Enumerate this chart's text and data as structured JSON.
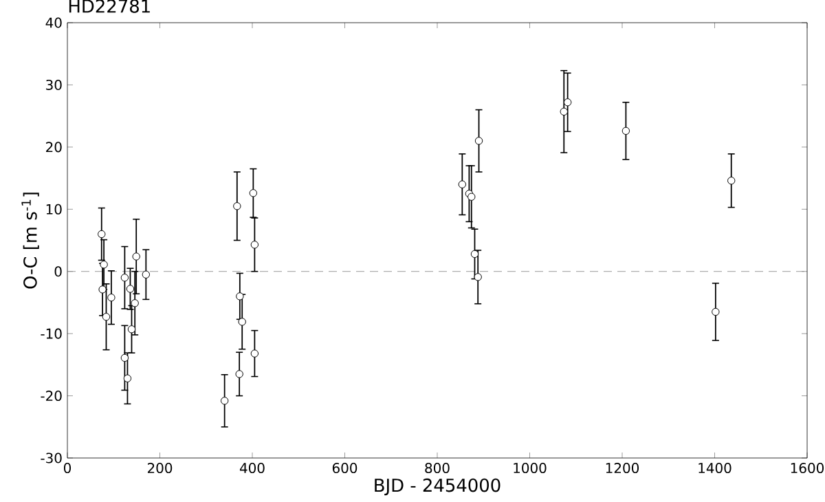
{
  "chart_data": {
    "type": "scatter",
    "title": "HD22781",
    "xlabel": "BJD - 2454000",
    "ylabel": "O-C [m s$^{-1}$]",
    "xlim": [
      0,
      1600
    ],
    "ylim": [
      -30,
      40
    ],
    "xticks": [
      0,
      200,
      400,
      600,
      800,
      1000,
      1200,
      1400,
      1600
    ],
    "yticks": [
      -30,
      -20,
      -10,
      0,
      10,
      20,
      30,
      40
    ],
    "grid": false,
    "marker": "circle",
    "series": [
      {
        "color": "#000000",
        "x": [
          74,
          79,
          76,
          95,
          84,
          124,
          136,
          149,
          146,
          139,
          124,
          130,
          170,
          340,
          367,
          373,
          378,
          372,
          402,
          405,
          405,
          854,
          869,
          874,
          881,
          888,
          890,
          1074,
          1082,
          1208,
          1402,
          1436
        ],
        "values": [
          6.0,
          1.1,
          -2.9,
          -4.2,
          -7.3,
          -1.0,
          -2.8,
          2.4,
          -5.1,
          -9.3,
          -13.9,
          -17.2,
          -0.5,
          -20.8,
          10.5,
          -4.0,
          -8.1,
          -16.5,
          12.6,
          4.3,
          -13.2,
          14.0,
          12.5,
          12.0,
          2.8,
          -0.9,
          21.0,
          25.7,
          27.2,
          22.6,
          -6.5,
          14.6
        ],
        "errors": [
          4.2,
          4.0,
          4.2,
          4.3,
          5.3,
          5.0,
          3.3,
          6.0,
          5.1,
          3.8,
          5.2,
          4.1,
          4.0,
          4.2,
          5.5,
          3.7,
          4.4,
          3.5,
          3.9,
          4.3,
          3.7,
          4.9,
          4.5,
          5.0,
          4.0,
          4.3,
          5.0,
          6.6,
          4.7,
          4.6,
          4.6,
          4.3
        ]
      }
    ],
    "ref_lines": [
      {
        "axis": "y",
        "value": 0,
        "color": "#808080",
        "line_style": "dashed"
      }
    ]
  }
}
